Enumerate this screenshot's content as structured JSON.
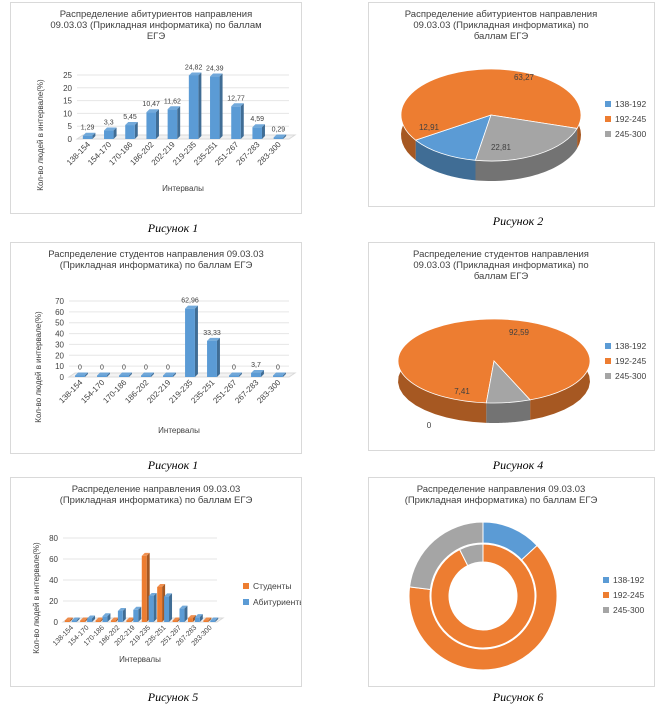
{
  "captions": [
    "Рисунок 1",
    "Рисунок 2",
    "Рисунок 1",
    "Рисунок 4",
    "Рисунок 5",
    "Рисунок 6"
  ],
  "colors": {
    "blue": "#5b9bd5",
    "orange": "#ed7d31",
    "gray": "#a5a5a5"
  },
  "chart_data": [
    {
      "type": "bar",
      "title": "Распределение абитуриентов направления 09.03.03 (Прикладная информатика) по баллам ЕГЭ",
      "title_lines": [
        "Распределение абитуриентов направления",
        "09.03.03 (Прикладная информатика) по баллам",
        "ЕГЭ"
      ],
      "xlabel": "Интервалы",
      "ylabel": "Кол-во людей в интервале(%)",
      "ylim": [
        0,
        25
      ],
      "yticks": [
        0,
        5,
        10,
        15,
        20,
        25
      ],
      "ytick_labels": [
        "0",
        "5",
        "10",
        "15",
        "20",
        "25"
      ],
      "categories": [
        "138-154",
        "154-170",
        "170-186",
        "186-202",
        "202-219",
        "219-235",
        "235-251",
        "251-267",
        "267-283",
        "283-300"
      ],
      "values": [
        1.29,
        3.3,
        5.45,
        10.47,
        11.62,
        24.82,
        24.39,
        12.77,
        4.59,
        0.29
      ],
      "data_labels": [
        "1,29",
        "3,3",
        "5,45",
        "10,47",
        "11,62",
        "24,82",
        "24,39",
        "12,77",
        "4,59",
        "0,29"
      ]
    },
    {
      "type": "pie",
      "title": "Распределение абитуриентов направления 09.03.03 (Прикладная информатика) по баллам ЕГЭ",
      "title_lines": [
        "Распределение абитуриентов направления",
        "09.03.03 (Прикладная информатика) по",
        "баллам ЕГЭ"
      ],
      "labels": [
        "138-192",
        "192-245",
        "245-300"
      ],
      "values": [
        12.91,
        63.27,
        22.81
      ],
      "data_labels": [
        "12,91",
        "63,27",
        "22,81"
      ],
      "legend": "right"
    },
    {
      "type": "bar",
      "title": "Распределение студентов направления 09.03.03 (Прикладная информатика) по баллам ЕГЭ",
      "title_lines": [
        "Распределение студентов направления 09.03.03",
        "(Прикладная информатика) по баллам ЕГЭ"
      ],
      "xlabel": "Интервалы",
      "ylabel": "Кол-во людей в интервале(%)",
      "ylim": [
        0,
        70
      ],
      "yticks": [
        0,
        10,
        20,
        30,
        40,
        50,
        60,
        70
      ],
      "ytick_labels": [
        "0",
        "10",
        "20",
        "30",
        "40",
        "50",
        "60",
        "70"
      ],
      "categories": [
        "138-154",
        "154-170",
        "170-186",
        "186-202",
        "202-219",
        "219-235",
        "235-251",
        "251-267",
        "267-283",
        "283-300"
      ],
      "values": [
        0,
        0,
        0,
        0,
        0,
        62.96,
        33.33,
        0,
        3.7,
        0
      ],
      "data_labels": [
        "0",
        "0",
        "0",
        "0",
        "0",
        "62,96",
        "33,33",
        "0",
        "3,7",
        "0"
      ]
    },
    {
      "type": "pie",
      "title": "Распределение студентов направления 09.03.03 (Прикладная информатика) по баллам ЕГЭ",
      "title_lines": [
        "Распределение студентов направления",
        "09.03.03 (Прикладная информатика) по",
        "баллам ЕГЭ"
      ],
      "labels": [
        "138-192",
        "192-245",
        "245-300"
      ],
      "values": [
        0,
        92.59,
        7.41
      ],
      "data_labels": [
        "0",
        "92,59",
        "7,41"
      ],
      "legend": "right"
    },
    {
      "type": "bar",
      "title": "Распределение направления 09.03.03 (Прикладная информатика) по баллам ЕГЭ",
      "title_lines": [
        "Распределение направления 09.03.03",
        "(Прикладная информатика) по баллам ЕГЭ"
      ],
      "xlabel": "Интервалы",
      "ylabel": "Кол-во людей в интервале(%)",
      "ylim": [
        0,
        80
      ],
      "yticks": [
        0,
        20,
        40,
        60,
        80
      ],
      "ytick_labels": [
        "0",
        "20",
        "40",
        "60",
        "80"
      ],
      "categories": [
        "138-154",
        "154-170",
        "170-186",
        "186-202",
        "202-219",
        "219-235",
        "235-251",
        "251-267",
        "267-283",
        "283-300"
      ],
      "series": [
        {
          "name": "Студенты",
          "values": [
            0,
            0,
            0,
            0,
            0,
            62.96,
            33.33,
            0,
            3.7,
            0
          ]
        },
        {
          "name": "Абитуриенты",
          "values": [
            1.29,
            3.3,
            5.45,
            10.47,
            11.62,
            24.82,
            24.39,
            12.77,
            4.59,
            0.29
          ]
        }
      ],
      "legend": "right"
    },
    {
      "type": "doughnut",
      "title": "Распределение направления 09.03.03 (Прикладная информатика) по баллам ЕГЭ",
      "title_lines": [
        "Распределение направления 09.03.03",
        "(Прикладная информатика) по баллам ЕГЭ"
      ],
      "labels": [
        "138-192",
        "192-245",
        "245-300"
      ],
      "series": [
        {
          "ring": "outer",
          "values": [
            12.91,
            63.27,
            22.81
          ]
        },
        {
          "ring": "inner",
          "values": [
            0,
            92.59,
            7.41
          ]
        }
      ],
      "legend": "right"
    }
  ]
}
